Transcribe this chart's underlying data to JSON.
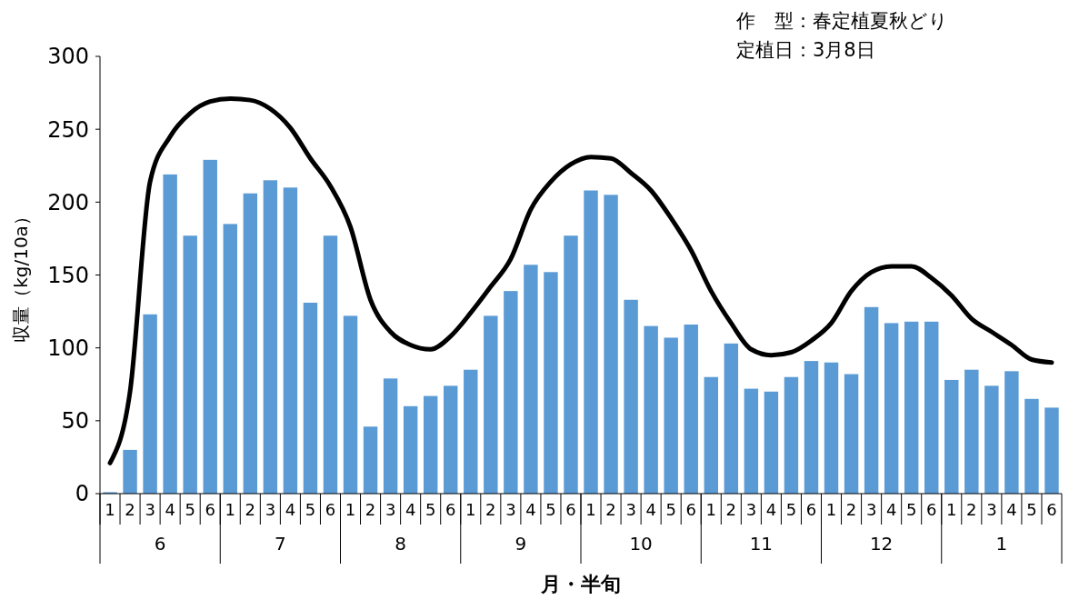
{
  "chart_data": {
    "type": "bar",
    "xlabel": "月・半旬",
    "ylabel": "収量（kg/10a）",
    "categories": [
      "1",
      "2",
      "3",
      "4",
      "5",
      "6",
      "1",
      "2",
      "3",
      "4",
      "5",
      "6",
      "1",
      "2",
      "3",
      "4",
      "5",
      "6",
      "1",
      "2",
      "3",
      "4",
      "5",
      "6",
      "1",
      "2",
      "3",
      "4",
      "5",
      "6",
      "1",
      "2",
      "3",
      "4",
      "5",
      "6",
      "1",
      "2",
      "3",
      "4",
      "5",
      "6",
      "1",
      "2",
      "3",
      "4",
      "5",
      "6"
    ],
    "series": [
      {
        "color": "#5b9bd5",
        "values": [
          1,
          30,
          123,
          219,
          177,
          229,
          185,
          206,
          215,
          210,
          131,
          177,
          122,
          46,
          79,
          60,
          67,
          74,
          85,
          122,
          139,
          157,
          152,
          177,
          208,
          205,
          133,
          115,
          107,
          116,
          80,
          103,
          72,
          70,
          80,
          91,
          90,
          82,
          128,
          117,
          118,
          118,
          78,
          85,
          74,
          84,
          65,
          59
        ]
      },
      {
        "type": "line",
        "color": "#000000",
        "values": [
          21,
          70,
          214,
          245,
          261,
          269,
          271,
          270,
          264,
          251,
          230,
          211,
          183,
          133,
          111,
          102,
          99,
          108,
          124,
          142,
          161,
          195,
          214,
          226,
          231,
          230,
          220,
          208,
          189,
          167,
          139,
          117,
          99,
          95,
          97,
          105,
          117,
          139,
          152,
          156,
          156,
          148,
          136,
          120,
          111,
          102,
          92,
          90
        ]
      }
    ],
    "ylim": [
      0,
      300
    ],
    "yticks": [
      0,
      50,
      100,
      150,
      200,
      250,
      300
    ],
    "grid": false,
    "legend": false,
    "marker": "none",
    "line_style": "solid",
    "annotations": [
      "作　型：春定植夏秋どり",
      "定植日：3月8日",
      "6",
      "7",
      "8",
      "9",
      "10",
      "11",
      "12",
      "1"
    ]
  }
}
